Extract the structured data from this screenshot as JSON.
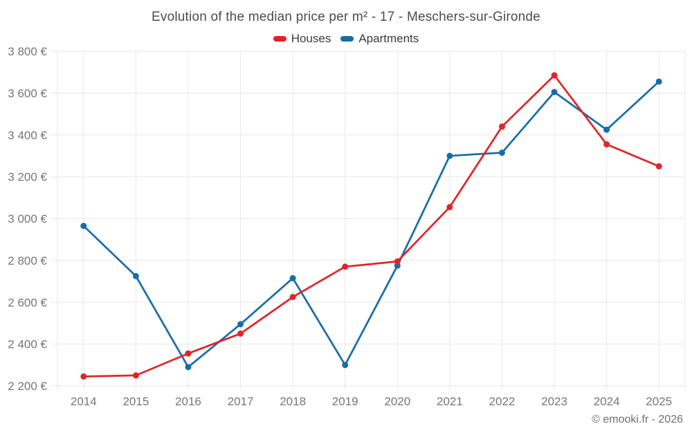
{
  "chart_data": {
    "type": "line",
    "title": "Evolution of the median price per m² - 17 - Meschers-sur-Gironde",
    "categories": [
      "2014",
      "2015",
      "2016",
      "2017",
      "2018",
      "2019",
      "2020",
      "2021",
      "2022",
      "2023",
      "2024",
      "2025"
    ],
    "series": [
      {
        "name": "Houses",
        "color": "#e02529",
        "values": [
          2245,
          2250,
          2355,
          2450,
          2625,
          2770,
          2795,
          3055,
          3440,
          3685,
          3355,
          3250
        ]
      },
      {
        "name": "Apartments",
        "color": "#186da6",
        "values": [
          2965,
          2725,
          2290,
          2495,
          2715,
          2300,
          2775,
          3300,
          3315,
          3605,
          3425,
          3655
        ]
      }
    ],
    "xlabel": "",
    "ylabel": "",
    "ylim": [
      2200,
      3800
    ],
    "y_tick_step": 200,
    "y_tick_labels": [
      "2 200 €",
      "2 400 €",
      "2 600 €",
      "2 800 €",
      "3 000 €",
      "3 200 €",
      "3 400 €",
      "3 600 €",
      "3 800 €"
    ],
    "grid": true,
    "legend_position": "top"
  },
  "footer": {
    "text": "© emooki.fr - 2026"
  }
}
